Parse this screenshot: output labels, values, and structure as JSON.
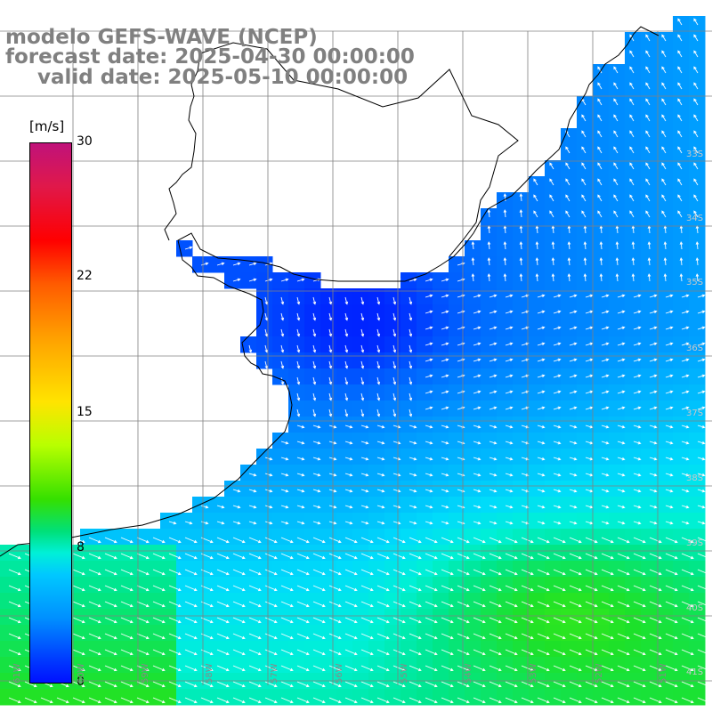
{
  "title": {
    "line1": "modelo GEFS-WAVE (NCEP)",
    "line2": "forecast date: 2025-04-30 00:00:00",
    "line3": "valid date: 2025-05-10 00:00:00"
  },
  "colorbar": {
    "unit": "[m/s]",
    "ticks": [
      "30",
      "22",
      "15",
      "8",
      "0"
    ]
  },
  "lon_labels": [
    "61W",
    "60W",
    "59W",
    "58W",
    "57W",
    "56W",
    "55W",
    "54W",
    "53W",
    "52W",
    "51W"
  ],
  "lat_labels": [
    "33S",
    "34S",
    "35S",
    "36S",
    "37S",
    "38S",
    "39S",
    "40S",
    "41S"
  ],
  "colors": {
    "land": "#ffffff",
    "grid": "#808080",
    "coast": "#000000",
    "arrow": "#ffffff"
  }
}
